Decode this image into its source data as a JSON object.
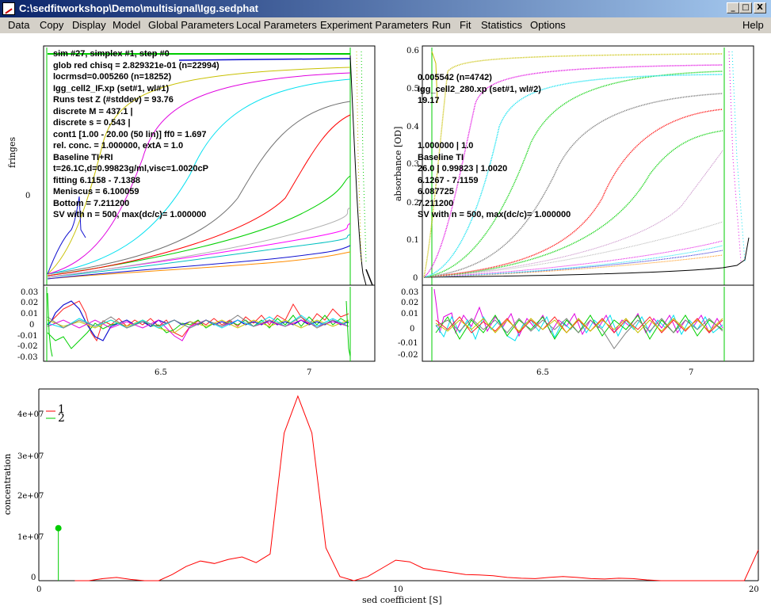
{
  "window": {
    "title": "C:\\sedfitworkshop\\Demo\\multisignal\\Igg.sedphat",
    "minimize": "_",
    "maximize": "□",
    "close": "X"
  },
  "menu": {
    "items": [
      "Data",
      "Copy",
      "Display",
      "Model",
      "Global Parameters",
      "Local Parameters",
      "Experiment Parameters",
      "Run",
      "Fit",
      "Statistics",
      "Options",
      "Help"
    ]
  },
  "left_panel": {
    "ylabel": "fringes",
    "yticks": [
      "0"
    ],
    "info": [
      "sim #27, simplex #1, step #0",
      "glob red chisq = 2.829321e-01 (n=22994)",
      "locrmsd=0.005260 (n=18252)",
      "Igg_cell2_IF.xp (set#1, wl#1)",
      "Runs test Z (#stddev) = 93.76",
      "discrete M = 437.1 |",
      "discrete s = 0.543 |",
      "cont1 [1.00 - 20.00 (50  lin)] ff0 = 1.697",
      "rel. conc. = 1.000000, extA = 1.0",
      "Baseline TI+RI",
      "t=26.1C,d=0.99823g/ml,visc=1.0020cP",
      "fitting 6.1158 - 7.1388",
      "Meniscus = 6.100059",
      "Bottom = 7.211200",
      "SV with n = 500, max(dc/c)= 1.000000"
    ],
    "resid_ticks": [
      "0.03",
      "0.02",
      "0.01",
      "0",
      "-0.01",
      "-0.02",
      "-0.03"
    ],
    "xticks": [
      "6.5",
      "7"
    ]
  },
  "right_panel": {
    "ylabel": "absorbance [OD]",
    "yticks": [
      "0.6",
      "0.5",
      "0.4",
      "0.3",
      "0.2",
      "0.1",
      "0"
    ],
    "info_top": [
      "0.005542 (n=4742)",
      "Igg_cell2_280.xp (set#1, wl#2)",
      "19.17"
    ],
    "info_bottom": [
      "1.000000 | 1.0",
      "Baseline TI",
      "26.0 | 0.99823 | 1.0020",
      "6.1267 - 7.1159",
      "6.087725",
      "7.211200",
      "SV with n = 500, max(dc/c)= 1.000000"
    ],
    "resid_ticks": [
      "0.03",
      "0.02",
      "0.01",
      "0",
      "-0.01",
      "-0.02"
    ],
    "xticks": [
      "6.5",
      "7"
    ]
  },
  "distribution": {
    "ylabel": "concentration",
    "xlabel": "sed coefficient [S]",
    "yticks": [
      "4e+07",
      "3e+07",
      "2e+07",
      "1e+07",
      "0"
    ],
    "xticks": [
      "0",
      "10",
      "20"
    ],
    "legend": [
      "1",
      "2"
    ]
  },
  "chart_data": {
    "type": "line",
    "xlabel": "sed coefficient [S]",
    "ylabel": "concentration",
    "xlim": [
      0,
      20
    ],
    "ylim": [
      0,
      45000000.0
    ],
    "series": [
      {
        "name": "1",
        "color": "#ff0000",
        "x": [
          1.0,
          1.39,
          1.78,
          2.16,
          2.55,
          2.94,
          3.33,
          3.71,
          4.1,
          4.49,
          4.88,
          5.27,
          5.65,
          6.04,
          6.43,
          6.82,
          7.2,
          7.59,
          7.98,
          8.37,
          8.76,
          9.14,
          9.53,
          9.92,
          10.31,
          10.69,
          11.08,
          11.47,
          11.86,
          12.24,
          12.63,
          13.02,
          13.41,
          13.8,
          14.18,
          14.57,
          14.96,
          15.35,
          15.73,
          16.12,
          16.51,
          16.9,
          17.29,
          17.67,
          18.06,
          18.45,
          18.84,
          19.22,
          19.61,
          20.0
        ],
        "y": [
          0,
          0,
          500000.0,
          800000.0,
          300000.0,
          0,
          0,
          1500000.0,
          3500000.0,
          4800000.0,
          4200000.0,
          5200000.0,
          5800000.0,
          4400000.0,
          6500000.0,
          36000000.0,
          45000000.0,
          36000000.0,
          8000000.0,
          1000000.0,
          0,
          1000000.0,
          3000000.0,
          5000000.0,
          4600000.0,
          3000000.0,
          2500000.0,
          2000000.0,
          1500000.0,
          1400000.0,
          1200000.0,
          800000.0,
          600000.0,
          500000.0,
          800000.0,
          1000000.0,
          800000.0,
          500000.0,
          400000.0,
          600000.0,
          500000.0,
          200000.0,
          0,
          0,
          0,
          0,
          0,
          0,
          0,
          7500000.0
        ]
      },
      {
        "name": "2",
        "color": "#00cc00",
        "x": [
          0.543
        ],
        "y": [
          12800000.0
        ]
      }
    ]
  }
}
